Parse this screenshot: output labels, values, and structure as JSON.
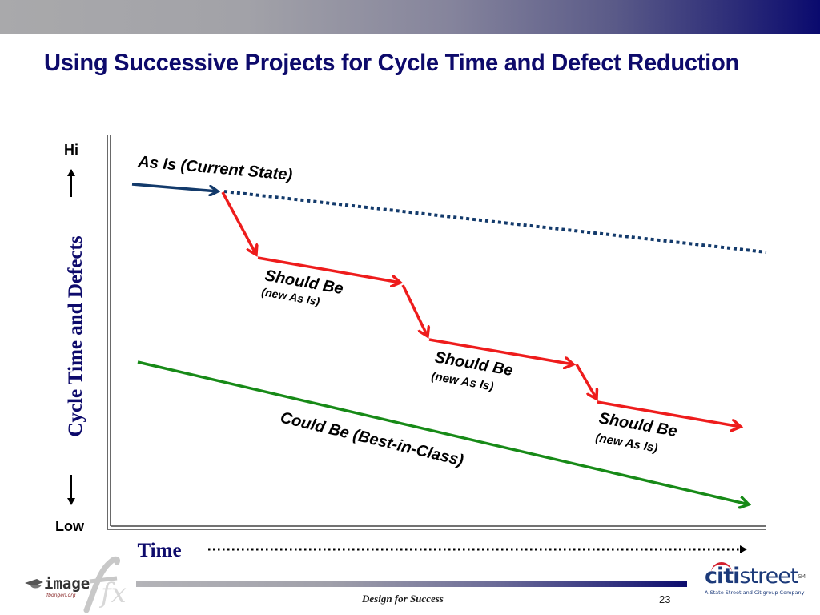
{
  "slide": {
    "title": "Using Successive Projects for Cycle Time and Defect Reduction",
    "footer_text": "Design for Success",
    "page_number": "23"
  },
  "axes": {
    "y_label": "Cycle Time and Defects",
    "y_high": "Hi",
    "y_low": "Low",
    "x_label": "Time"
  },
  "chart_data": {
    "type": "line",
    "title": "Using Successive Projects for Cycle Time and Defect Reduction",
    "xlabel": "Time",
    "ylabel": "Cycle Time and Defects",
    "y_scale_labels": [
      "Low",
      "Hi"
    ],
    "series": [
      {
        "name": "As Is (Current State)",
        "style": "solid-then-dotted",
        "color": "#133a6b"
      },
      {
        "name": "Should Be (new As Is) 1",
        "style": "solid-step",
        "color": "#ee1c1c"
      },
      {
        "name": "Should Be (new As Is) 2",
        "style": "solid-step",
        "color": "#ee1c1c"
      },
      {
        "name": "Should Be (new As Is) 3",
        "style": "solid-step",
        "color": "#ee1c1c"
      },
      {
        "name": "Could Be (Best-in-Class)",
        "style": "solid",
        "color": "#178a17"
      }
    ]
  },
  "labels": {
    "as_is": "As Is (Current State)",
    "should_be": [
      {
        "main": "Should Be",
        "sub": "(new As Is)"
      },
      {
        "main": "Should Be",
        "sub": "(new As Is)"
      },
      {
        "main": "Should Be",
        "sub": "(new As Is)"
      }
    ],
    "could_be": "Could Be (Best-in-Class)"
  },
  "logos": {
    "left_brand": "image",
    "left_brand_suffix": "fx",
    "left_tagline": "fbongen.org",
    "right_brand_citi": "citi",
    "right_brand_street": "street",
    "right_trademark": "SM",
    "right_tagline": "A State Street and Citigroup Company"
  },
  "colors": {
    "title": "#0d0a6b",
    "as_is_line": "#133a6b",
    "should_be_line": "#ee1c1c",
    "could_be_line": "#178a17",
    "axis_label": "#0d0a6b"
  }
}
